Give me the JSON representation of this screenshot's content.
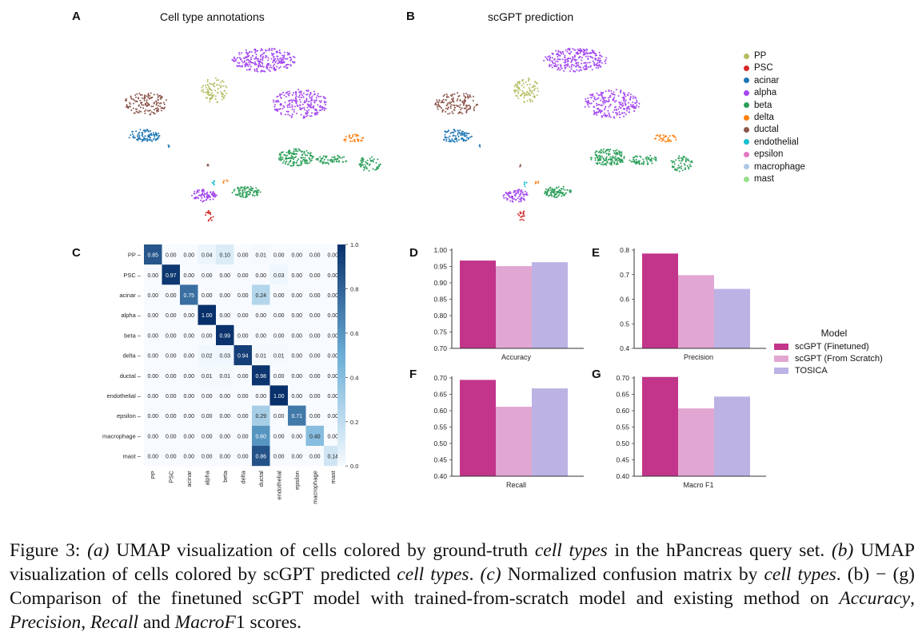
{
  "panels": {
    "A": {
      "label": "A",
      "title": "Cell type annotations"
    },
    "B": {
      "label": "B",
      "title": "scGPT prediction"
    },
    "C": {
      "label": "C"
    },
    "D": {
      "label": "D"
    },
    "E": {
      "label": "E"
    },
    "F": {
      "label": "F"
    },
    "G": {
      "label": "G"
    }
  },
  "umap_legend": [
    {
      "name": "PP",
      "color": "#b5bd61"
    },
    {
      "name": "PSC",
      "color": "#d62728"
    },
    {
      "name": "acinar",
      "color": "#1f77b4"
    },
    {
      "name": "alpha",
      "color": "#a347f0"
    },
    {
      "name": "beta",
      "color": "#2ca05a"
    },
    {
      "name": "delta",
      "color": "#ff7f0e"
    },
    {
      "name": "ductal",
      "color": "#8c564b"
    },
    {
      "name": "endothelial",
      "color": "#17becf"
    },
    {
      "name": "epsilon",
      "color": "#e377c2"
    },
    {
      "name": "macrophage",
      "color": "#aec7e8"
    },
    {
      "name": "mast",
      "color": "#98df8a"
    }
  ],
  "bar_legend": {
    "title": "Model",
    "items": [
      {
        "name": "scGPT (Finetuned)",
        "color": "#c2358a"
      },
      {
        "name": "scGPT (From Scratch)",
        "color": "#e2a6d2"
      },
      {
        "name": "TOSICA",
        "color": "#bcb2e4"
      }
    ]
  },
  "chart_data": [
    {
      "id": "C",
      "type": "heatmap",
      "rows": [
        "PP",
        "PSC",
        "acinar",
        "alpha",
        "beta",
        "delta",
        "ductal",
        "endothelial",
        "epsilon",
        "macrophage",
        "mast"
      ],
      "cols": [
        "PP",
        "PSC",
        "acinar",
        "alpha",
        "beta",
        "delta",
        "ductal",
        "endothelial",
        "epsilon",
        "macrophage",
        "mast"
      ],
      "values": [
        [
          0.85,
          0.0,
          0.0,
          0.04,
          0.1,
          0.0,
          0.01,
          0.0,
          0.0,
          0.0,
          0.0
        ],
        [
          0.0,
          0.97,
          0.0,
          0.0,
          0.0,
          0.0,
          0.0,
          0.03,
          0.0,
          0.0,
          0.0
        ],
        [
          0.0,
          0.0,
          0.75,
          0.0,
          0.0,
          0.0,
          0.24,
          0.0,
          0.0,
          0.0,
          0.0
        ],
        [
          0.0,
          0.0,
          0.0,
          1.0,
          0.0,
          0.0,
          0.0,
          0.0,
          0.0,
          0.0,
          0.0
        ],
        [
          0.0,
          0.0,
          0.0,
          0.0,
          0.99,
          0.0,
          0.0,
          0.0,
          0.0,
          0.0,
          0.0
        ],
        [
          0.0,
          0.0,
          0.0,
          0.02,
          0.03,
          0.94,
          0.01,
          0.01,
          0.0,
          0.0,
          0.0
        ],
        [
          0.0,
          0.0,
          0.0,
          0.01,
          0.01,
          0.0,
          0.98,
          0.0,
          0.0,
          0.0,
          0.0
        ],
        [
          0.0,
          0.0,
          0.0,
          0.0,
          0.0,
          0.0,
          0.0,
          1.0,
          0.0,
          0.0,
          0.0
        ],
        [
          0.0,
          0.0,
          0.0,
          0.0,
          0.0,
          0.0,
          0.29,
          0.0,
          0.71,
          0.0,
          0.0
        ],
        [
          0.0,
          0.0,
          0.0,
          0.0,
          0.0,
          0.0,
          0.6,
          0.0,
          0.0,
          0.4,
          0.0
        ],
        [
          0.0,
          0.0,
          0.0,
          0.0,
          0.0,
          0.0,
          0.86,
          0.0,
          0.0,
          0.0,
          0.14
        ]
      ],
      "colorbar_ticks": [
        "0.0",
        "0.2",
        "0.4",
        "0.6",
        "0.8",
        "1.0"
      ],
      "zlim": [
        0,
        1
      ]
    },
    {
      "id": "D",
      "type": "bar",
      "xlabel": "Accuracy",
      "categories": [
        "scGPT (Finetuned)",
        "scGPT (From Scratch)",
        "TOSICA"
      ],
      "values": [
        0.968,
        0.951,
        0.963
      ],
      "ylim": [
        0.7,
        1.0
      ],
      "yticks": [
        "0.70",
        "0.75",
        "0.80",
        "0.85",
        "0.90",
        "0.95",
        "1.00"
      ]
    },
    {
      "id": "E",
      "type": "bar",
      "xlabel": "Precision",
      "categories": [
        "scGPT (Finetuned)",
        "scGPT (From Scratch)",
        "TOSICA"
      ],
      "values": [
        0.786,
        0.698,
        0.642
      ],
      "ylim": [
        0.4,
        0.8
      ],
      "yticks": [
        "0.4",
        "0.5",
        "0.6",
        "0.7",
        "0.8"
      ]
    },
    {
      "id": "F",
      "type": "bar",
      "xlabel": "Recall",
      "categories": [
        "scGPT (Finetuned)",
        "scGPT (From Scratch)",
        "TOSICA"
      ],
      "values": [
        0.694,
        0.612,
        0.668
      ],
      "ylim": [
        0.4,
        0.7
      ],
      "yticks": [
        "0.40",
        "0.45",
        "0.50",
        "0.55",
        "0.60",
        "0.65",
        "0.70"
      ]
    },
    {
      "id": "G",
      "type": "bar",
      "xlabel": "Macro F1",
      "categories": [
        "scGPT (Finetuned)",
        "scGPT (From Scratch)",
        "TOSICA"
      ],
      "values": [
        0.703,
        0.607,
        0.643
      ],
      "ylim": [
        0.4,
        0.7
      ],
      "yticks": [
        "0.40",
        "0.45",
        "0.50",
        "0.55",
        "0.60",
        "0.65",
        "0.70"
      ]
    }
  ],
  "caption": {
    "fig": "Figure 3: ",
    "a_label": "(a)",
    "a_text1": " UMAP visualization of cells colored by ground-truth ",
    "a_em": "cell types",
    "a_text2": " in the hPancreas query set. ",
    "b_label": "(b)",
    "b_text1": " UMAP visualization of cells colored by scGPT predicted ",
    "b_em": "cell types",
    "b_text2": ". ",
    "c_label": "(c)",
    "c_text1": " Normalized confusion matrix by ",
    "c_em": "cell types",
    "c_text2": ". (b) − (g) Comparison of the finetuned scGPT model with trained-from-scratch model and existing method on ",
    "m1": "Accuracy",
    "sep1": ", ",
    "m2": "Precision",
    "sep2": ", ",
    "m3": "Recall",
    "sep3": " and ",
    "m4": "MacroF",
    "tail": "1 scores."
  }
}
